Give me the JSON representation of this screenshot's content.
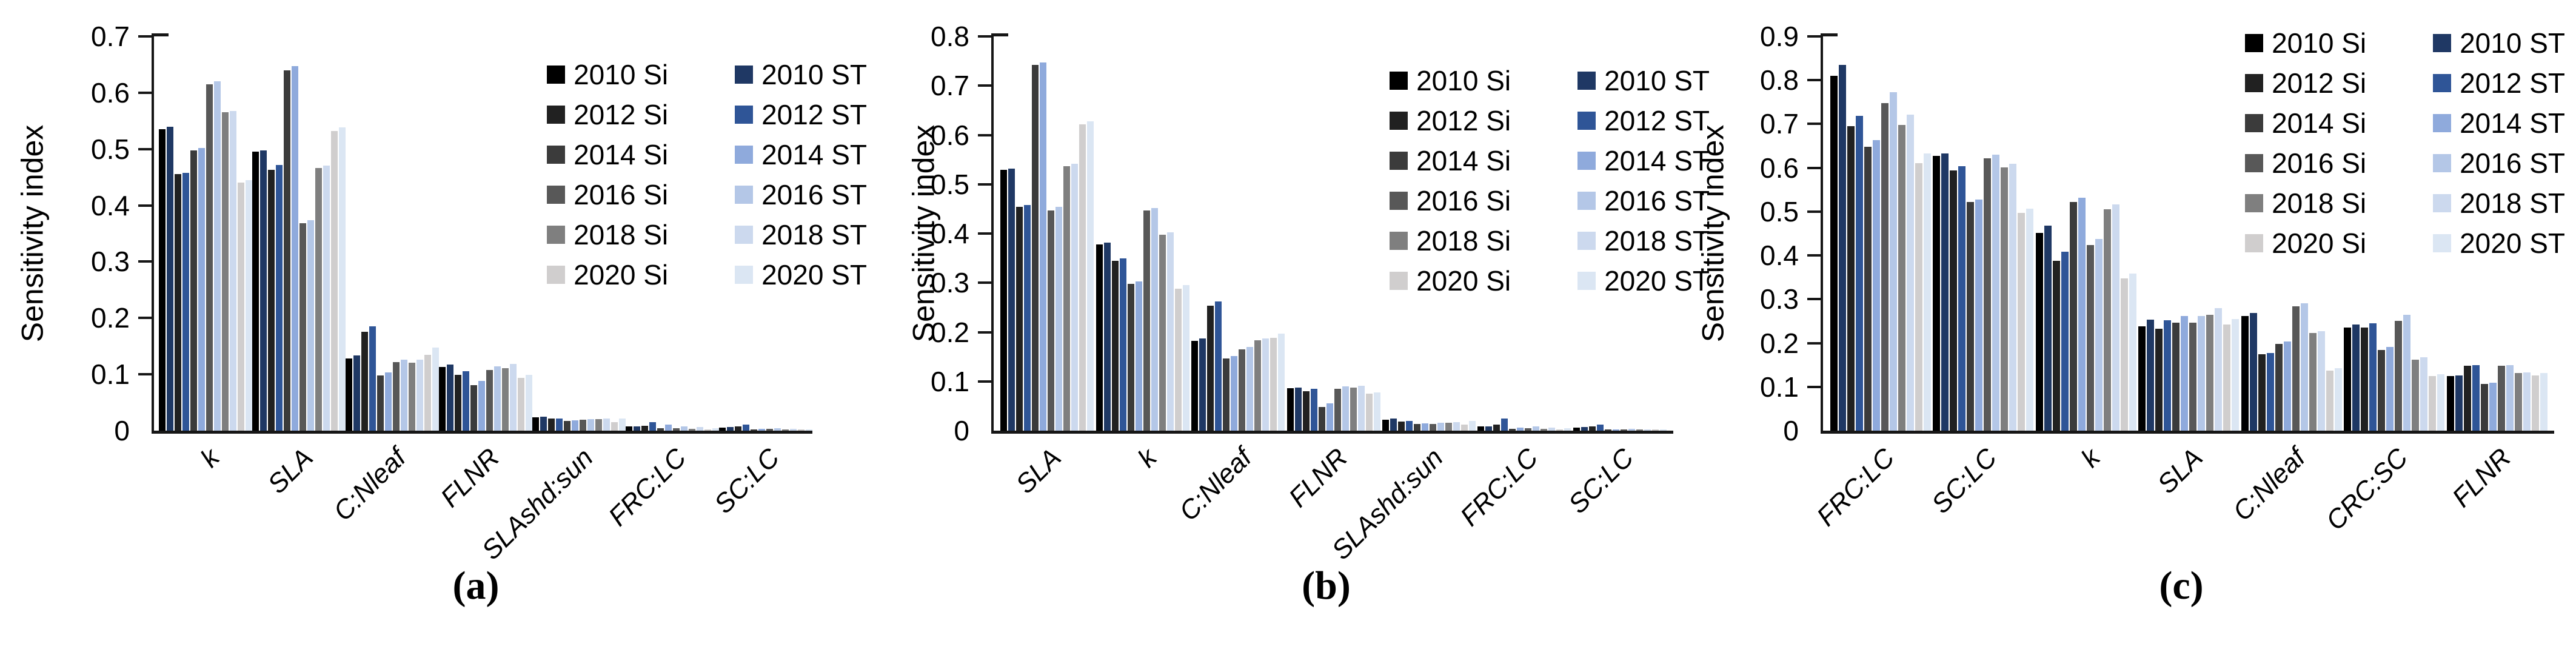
{
  "figure": {
    "ylabel": "Sensitivity index",
    "series_order_note": "each cluster shows pairs per year: Si (gray) then ST (blue)"
  },
  "chart_data": [
    {
      "type": "bar",
      "caption": "(a)",
      "ylabel": "Sensitivity index",
      "ymax": 0.7,
      "ytick_step": 0.1,
      "ylim": [
        0,
        0.7
      ],
      "legend_position": "top-right",
      "categories": [
        "k",
        "SLA",
        "C:Nleaf",
        "FLNR",
        "SLAshd:sun",
        "FRC:LC",
        "SC:LC"
      ],
      "series": [
        {
          "name": "2010 Si",
          "color": "#000000",
          "values": [
            0.535,
            0.495,
            0.128,
            0.113,
            0.024,
            0.007,
            0.005
          ]
        },
        {
          "name": "2010 ST",
          "color": "#1f3864",
          "values": [
            0.54,
            0.498,
            0.134,
            0.117,
            0.025,
            0.008,
            0.006
          ]
        },
        {
          "name": "2012 Si",
          "color": "#212121",
          "values": [
            0.455,
            0.463,
            0.175,
            0.099,
            0.021,
            0.009,
            0.007
          ]
        },
        {
          "name": "2012 ST",
          "color": "#2f5597",
          "values": [
            0.458,
            0.472,
            0.185,
            0.105,
            0.022,
            0.015,
            0.011
          ]
        },
        {
          "name": "2014 Si",
          "color": "#3b3b3b",
          "values": [
            0.497,
            0.64,
            0.098,
            0.081,
            0.017,
            0.004,
            0.002
          ]
        },
        {
          "name": "2014 ST",
          "color": "#8faadc",
          "values": [
            0.502,
            0.647,
            0.103,
            0.088,
            0.018,
            0.011,
            0.003
          ]
        },
        {
          "name": "2016 Si",
          "color": "#585858",
          "values": [
            0.615,
            0.368,
            0.122,
            0.108,
            0.019,
            0.004,
            0.003
          ]
        },
        {
          "name": "2016 ST",
          "color": "#b4c7e7",
          "values": [
            0.62,
            0.374,
            0.126,
            0.114,
            0.02,
            0.008,
            0.004
          ]
        },
        {
          "name": "2018 Si",
          "color": "#7f7f7f",
          "values": [
            0.565,
            0.466,
            0.121,
            0.111,
            0.02,
            0.003,
            0.002
          ]
        },
        {
          "name": "2018 ST",
          "color": "#ccd9ee",
          "values": [
            0.568,
            0.471,
            0.126,
            0.118,
            0.021,
            0.006,
            0.003
          ]
        },
        {
          "name": "2020 Si",
          "color": "#d0cece",
          "values": [
            0.44,
            0.532,
            0.135,
            0.094,
            0.015,
            0.002,
            0.001
          ]
        },
        {
          "name": "2020 ST",
          "color": "#dbe6f3",
          "values": [
            0.445,
            0.538,
            0.148,
            0.099,
            0.022,
            0.004,
            0.002
          ]
        }
      ]
    },
    {
      "type": "bar",
      "caption": "(b)",
      "ylabel": "Sensitivity index",
      "ymax": 0.8,
      "ytick_step": 0.1,
      "ylim": [
        0,
        0.8
      ],
      "legend_position": "top-right",
      "categories": [
        "SLA",
        "k",
        "C:Nleaf",
        "FLNR",
        "SLAshd:sun",
        "FRC:LC",
        "SC:LC"
      ],
      "series": [
        {
          "name": "2010 Si",
          "color": "#000000",
          "values": [
            0.529,
            0.378,
            0.182,
            0.086,
            0.022,
            0.008,
            0.006
          ]
        },
        {
          "name": "2010 ST",
          "color": "#1f3864",
          "values": [
            0.532,
            0.382,
            0.187,
            0.088,
            0.024,
            0.009,
            0.007
          ]
        },
        {
          "name": "2012 Si",
          "color": "#212121",
          "values": [
            0.454,
            0.345,
            0.253,
            0.08,
            0.018,
            0.012,
            0.008
          ]
        },
        {
          "name": "2012 ST",
          "color": "#2f5597",
          "values": [
            0.458,
            0.35,
            0.262,
            0.085,
            0.02,
            0.025,
            0.012
          ]
        },
        {
          "name": "2014 Si",
          "color": "#3b3b3b",
          "values": [
            0.742,
            0.298,
            0.146,
            0.048,
            0.014,
            0.004,
            0.002
          ]
        },
        {
          "name": "2014 ST",
          "color": "#8faadc",
          "values": [
            0.747,
            0.303,
            0.152,
            0.055,
            0.015,
            0.006,
            0.003
          ]
        },
        {
          "name": "2016 Si",
          "color": "#585858",
          "values": [
            0.447,
            0.447,
            0.165,
            0.085,
            0.014,
            0.005,
            0.003
          ]
        },
        {
          "name": "2016 ST",
          "color": "#b4c7e7",
          "values": [
            0.454,
            0.452,
            0.17,
            0.09,
            0.016,
            0.008,
            0.004
          ]
        },
        {
          "name": "2018 Si",
          "color": "#7f7f7f",
          "values": [
            0.536,
            0.398,
            0.183,
            0.088,
            0.016,
            0.004,
            0.002
          ]
        },
        {
          "name": "2018 ST",
          "color": "#ccd9ee",
          "values": [
            0.542,
            0.403,
            0.187,
            0.091,
            0.017,
            0.006,
            0.003
          ]
        },
        {
          "name": "2020 Si",
          "color": "#d0cece",
          "values": [
            0.622,
            0.288,
            0.188,
            0.075,
            0.012,
            0.003,
            0.002
          ]
        },
        {
          "name": "2020 ST",
          "color": "#dbe6f3",
          "values": [
            0.628,
            0.295,
            0.197,
            0.078,
            0.02,
            0.005,
            0.003
          ]
        }
      ]
    },
    {
      "type": "bar",
      "caption": "(c)",
      "ylabel": "Sensitivity index",
      "ymax": 0.9,
      "ytick_step": 0.1,
      "ylim": [
        0,
        0.9
      ],
      "legend_position": "top-right",
      "categories": [
        "FRC:LC",
        "SC:LC",
        "k",
        "SLA",
        "C:Nleaf",
        "CRC:SC",
        "FLNR"
      ],
      "series": [
        {
          "name": "2010 Si",
          "color": "#000000",
          "values": [
            0.81,
            0.627,
            0.452,
            0.238,
            0.262,
            0.236,
            0.125
          ]
        },
        {
          "name": "2010 ST",
          "color": "#1f3864",
          "values": [
            0.835,
            0.633,
            0.468,
            0.254,
            0.268,
            0.242,
            0.126
          ]
        },
        {
          "name": "2012 Si",
          "color": "#212121",
          "values": [
            0.695,
            0.594,
            0.388,
            0.232,
            0.174,
            0.236,
            0.148
          ]
        },
        {
          "name": "2012 ST",
          "color": "#2f5597",
          "values": [
            0.718,
            0.604,
            0.408,
            0.252,
            0.177,
            0.245,
            0.149
          ]
        },
        {
          "name": "2014 Si",
          "color": "#3b3b3b",
          "values": [
            0.648,
            0.522,
            0.522,
            0.246,
            0.198,
            0.184,
            0.106
          ]
        },
        {
          "name": "2014 ST",
          "color": "#8faadc",
          "values": [
            0.663,
            0.528,
            0.532,
            0.261,
            0.203,
            0.191,
            0.11
          ]
        },
        {
          "name": "2016 Si",
          "color": "#585858",
          "values": [
            0.748,
            0.622,
            0.423,
            0.246,
            0.284,
            0.251,
            0.148
          ]
        },
        {
          "name": "2016 ST",
          "color": "#b4c7e7",
          "values": [
            0.772,
            0.63,
            0.437,
            0.261,
            0.291,
            0.264,
            0.15
          ]
        },
        {
          "name": "2018 Si",
          "color": "#7f7f7f",
          "values": [
            0.698,
            0.601,
            0.505,
            0.264,
            0.223,
            0.162,
            0.132
          ]
        },
        {
          "name": "2018 ST",
          "color": "#ccd9ee",
          "values": [
            0.722,
            0.609,
            0.517,
            0.28,
            0.227,
            0.168,
            0.133
          ]
        },
        {
          "name": "2020 Si",
          "color": "#d0cece",
          "values": [
            0.61,
            0.497,
            0.347,
            0.243,
            0.137,
            0.125,
            0.126
          ]
        },
        {
          "name": "2020 ST",
          "color": "#dbe6f3",
          "values": [
            0.633,
            0.507,
            0.358,
            0.255,
            0.143,
            0.129,
            0.132
          ]
        }
      ]
    }
  ]
}
